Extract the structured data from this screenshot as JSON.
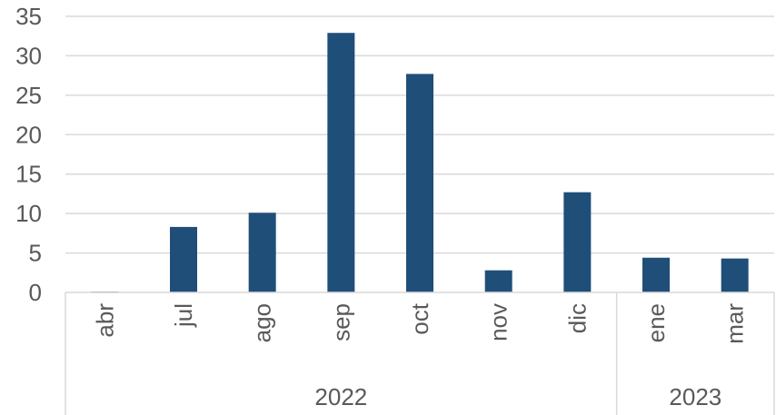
{
  "chart_data": {
    "type": "bar",
    "categories": [
      "abr",
      "jul",
      "ago",
      "sep",
      "oct",
      "nov",
      "dic",
      "ene",
      "mar"
    ],
    "groups": [
      {
        "label": "2022",
        "count": 7
      },
      {
        "label": "2023",
        "count": 2
      }
    ],
    "values": [
      0.1,
      8.3,
      10.1,
      32.9,
      27.7,
      2.8,
      12.7,
      4.4,
      4.3
    ],
    "title": "",
    "xlabel": "",
    "ylabel": "",
    "ylim": [
      0,
      35
    ],
    "yticks": [
      "0",
      "5",
      "10",
      "15",
      "20",
      "25",
      "30",
      "35"
    ],
    "grid": true,
    "legend": "none",
    "bar_color": "#1F4E79",
    "grid_color": "#D9D9D9",
    "text_color": "#595959"
  }
}
